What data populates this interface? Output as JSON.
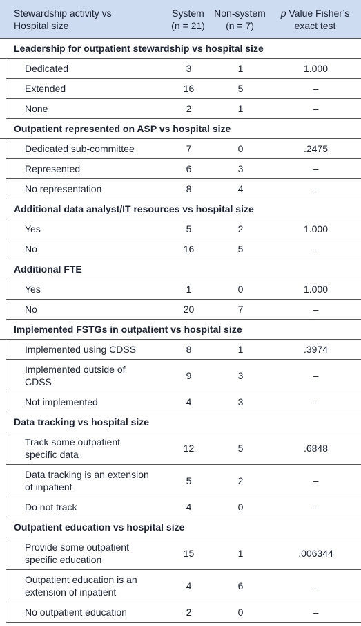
{
  "header": {
    "activity": [
      "Stewardship activity vs",
      "Hospital size"
    ],
    "system": [
      "System",
      "(n = 21)"
    ],
    "nonsystem": [
      "Non-system",
      "(n = 7)"
    ],
    "p_italic": "p",
    "p_rest": [
      "Value Fisher’s",
      "exact test"
    ]
  },
  "sections": [
    {
      "title": "Leadership for outpatient stewardship vs hospital size",
      "rows": [
        {
          "label": [
            "Dedicated"
          ],
          "system": 3,
          "nonsystem": 1,
          "p": "1.000"
        },
        {
          "label": [
            "Extended"
          ],
          "system": 16,
          "nonsystem": 5,
          "p": "–"
        },
        {
          "label": [
            "None"
          ],
          "system": 2,
          "nonsystem": 1,
          "p": "–"
        }
      ]
    },
    {
      "title": "Outpatient represented on ASP vs hospital size",
      "rows": [
        {
          "label": [
            "Dedicated sub-committee"
          ],
          "system": 7,
          "nonsystem": 0,
          "p": ".2475"
        },
        {
          "label": [
            "Represented"
          ],
          "system": 6,
          "nonsystem": 3,
          "p": "–"
        },
        {
          "label": [
            "No representation"
          ],
          "system": 8,
          "nonsystem": 4,
          "p": "–"
        }
      ]
    },
    {
      "title": "Additional data analyst/IT resources vs hospital size",
      "rows": [
        {
          "label": [
            "Yes"
          ],
          "system": 5,
          "nonsystem": 2,
          "p": "1.000"
        },
        {
          "label": [
            "No"
          ],
          "system": 16,
          "nonsystem": 5,
          "p": "–"
        }
      ]
    },
    {
      "title": "Additional FTE",
      "rows": [
        {
          "label": [
            "Yes"
          ],
          "system": 1,
          "nonsystem": 0,
          "p": "1.000"
        },
        {
          "label": [
            "No"
          ],
          "system": 20,
          "nonsystem": 7,
          "p": "–"
        }
      ]
    },
    {
      "title": "Implemented FSTGs in outpatient vs hospital size",
      "rows": [
        {
          "label": [
            "Implemented using CDSS"
          ],
          "system": 8,
          "nonsystem": 1,
          "p": ".3974"
        },
        {
          "label": [
            "Implemented outside of",
            "CDSS"
          ],
          "system": 9,
          "nonsystem": 3,
          "p": "–"
        },
        {
          "label": [
            "Not implemented"
          ],
          "system": 4,
          "nonsystem": 3,
          "p": "–"
        }
      ]
    },
    {
      "title": "Data tracking vs hospital size",
      "rows": [
        {
          "label": [
            "Track some outpatient",
            "specific data"
          ],
          "system": 12,
          "nonsystem": 5,
          "p": ".6848"
        },
        {
          "label": [
            "Data tracking is an extension",
            "of inpatient"
          ],
          "system": 5,
          "nonsystem": 2,
          "p": "–"
        },
        {
          "label": [
            "Do not track"
          ],
          "system": 4,
          "nonsystem": 0,
          "p": "–"
        }
      ]
    },
    {
      "title": "Outpatient education vs hospital size",
      "rows": [
        {
          "label": [
            "Provide some outpatient",
            "specific education"
          ],
          "system": 15,
          "nonsystem": 1,
          "p": ".006344"
        },
        {
          "label": [
            "Outpatient education is an",
            "extension of inpatient"
          ],
          "system": 4,
          "nonsystem": 6,
          "p": "–"
        },
        {
          "label": [
            "No outpatient education"
          ],
          "system": 2,
          "nonsystem": 0,
          "p": "–"
        }
      ]
    }
  ]
}
